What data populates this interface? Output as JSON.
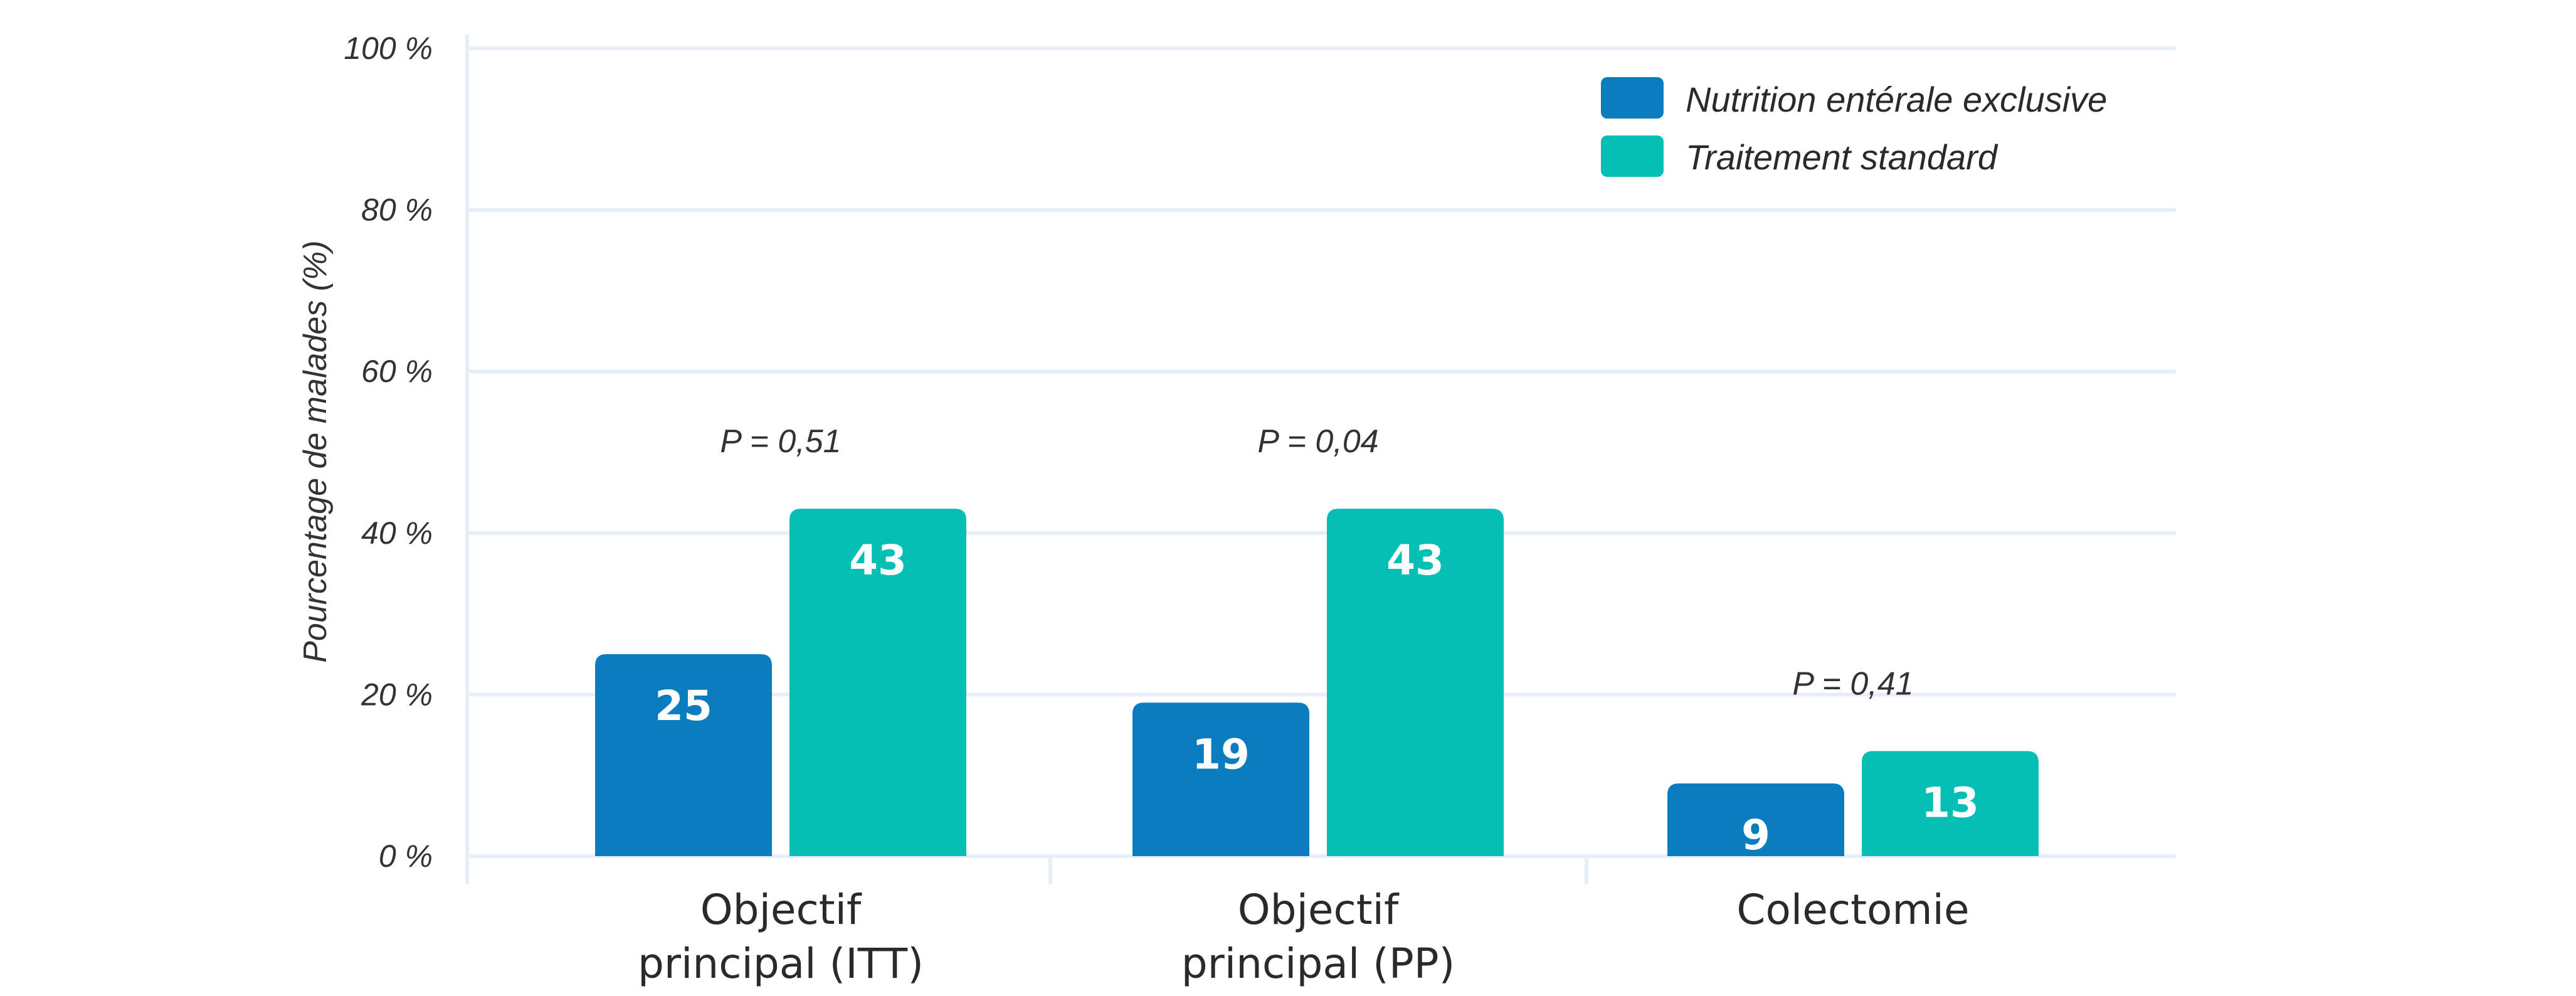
{
  "chart_data": {
    "type": "bar",
    "title": "",
    "xlabel": "",
    "ylabel": "Pourcentage de malades (%)",
    "ylim": [
      0,
      100
    ],
    "yticks": [
      "0 %",
      "20 %",
      "40 %",
      "60 %",
      "80 %",
      "100 %"
    ],
    "categories": [
      [
        "Objectif",
        "principal (ITT)"
      ],
      [
        "Objectif",
        "principal (PP)"
      ],
      [
        "Colectomie"
      ]
    ],
    "series": [
      {
        "name": "Nutrition entérale exclusive",
        "color": "#0a7dbe",
        "values": [
          25,
          19,
          9
        ]
      },
      {
        "name": "Traitement standard",
        "color": "#04bfb3",
        "values": [
          43,
          43,
          13
        ]
      }
    ],
    "annotations": [
      "P = 0,51",
      "P = 0,04",
      "P = 0,41"
    ],
    "grid": true,
    "legend": "top-right"
  }
}
